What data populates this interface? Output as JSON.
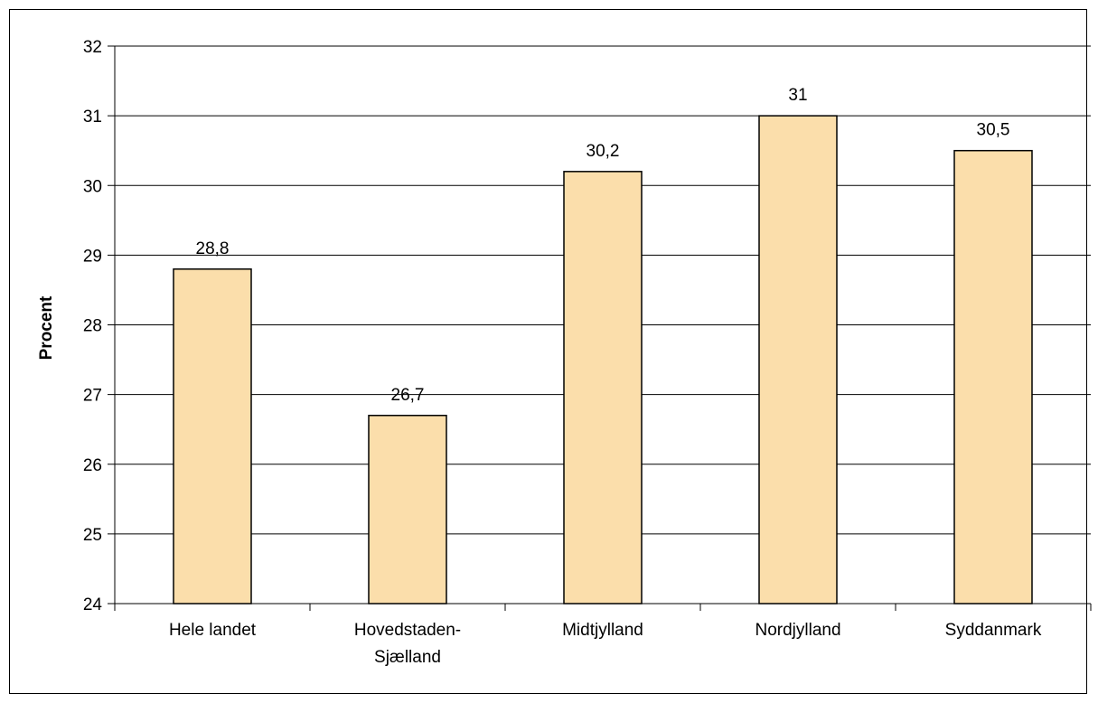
{
  "chart_data": {
    "type": "bar",
    "title": "",
    "xlabel": "",
    "ylabel": "Procent",
    "ylim": [
      24,
      32
    ],
    "yticks": [
      24,
      25,
      26,
      27,
      28,
      29,
      30,
      31,
      32
    ],
    "grid": true,
    "legend": "none",
    "categories": [
      [
        "Hele landet"
      ],
      [
        "Hovedstaden-",
        "Sjælland"
      ],
      [
        "Midtjylland"
      ],
      [
        "Nordjylland"
      ],
      [
        "Syddanmark"
      ]
    ],
    "values": [
      28.8,
      26.7,
      30.2,
      31.0,
      30.5
    ],
    "data_labels": [
      "28,8",
      "26,7",
      "30,2",
      "31",
      "30,5"
    ],
    "bar_color": "#FBDEAB",
    "bar_edge_color": "#000000"
  }
}
